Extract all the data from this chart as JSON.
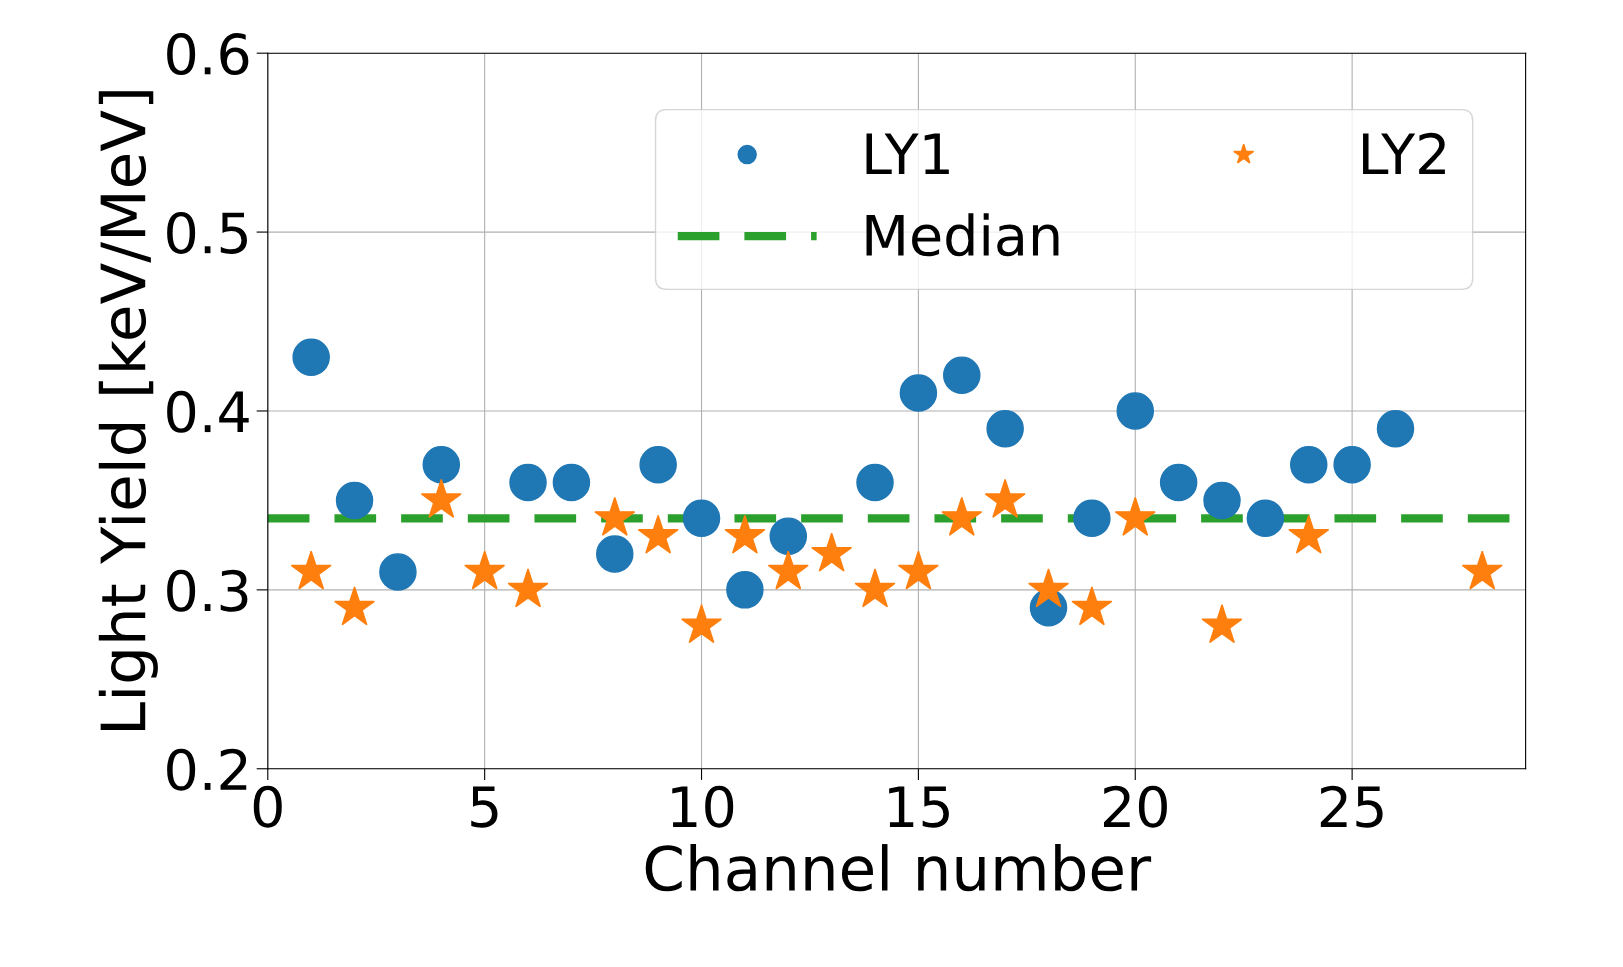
{
  "chart_data": {
    "type": "scatter",
    "xlabel": "Channel number",
    "ylabel": "Light Yield [keV/MeV]",
    "xlim": [
      0,
      29
    ],
    "xticks": [
      0,
      5,
      10,
      15,
      20,
      25
    ],
    "ylim": [
      0.2,
      0.6
    ],
    "yticks": [
      0.2,
      0.3,
      0.4,
      0.5,
      0.6
    ],
    "grid": true,
    "legend": "top right",
    "series": [
      {
        "name": "LY1",
        "color": "#1f77b4",
        "marker": "circle",
        "x": [
          1,
          2,
          3,
          4,
          6,
          7,
          8,
          9,
          10,
          11,
          12,
          14,
          15,
          16,
          17,
          18,
          19,
          20,
          21,
          22,
          23,
          24,
          25,
          26
        ],
        "values": [
          0.43,
          0.35,
          0.31,
          0.37,
          0.36,
          0.36,
          0.32,
          0.37,
          0.34,
          0.3,
          0.33,
          0.36,
          0.41,
          0.42,
          0.39,
          0.29,
          0.34,
          0.4,
          0.36,
          0.35,
          0.34,
          0.37,
          0.37,
          0.39
        ]
      },
      {
        "name": "LY2",
        "color": "#ff7f0e",
        "marker": "star",
        "x": [
          1,
          2,
          4,
          5,
          6,
          8,
          9,
          10,
          11,
          12,
          13,
          14,
          15,
          16,
          17,
          18,
          19,
          20,
          22,
          24,
          28
        ],
        "values": [
          0.31,
          0.29,
          0.35,
          0.31,
          0.3,
          0.34,
          0.33,
          0.28,
          0.33,
          0.31,
          0.32,
          0.3,
          0.31,
          0.34,
          0.35,
          0.3,
          0.29,
          0.34,
          0.28,
          0.33,
          0.31
        ]
      }
    ],
    "ref_lines": [
      {
        "axis": "y",
        "value": 0.34,
        "label": "Median",
        "color": "#2ca02c",
        "line_style": "dashed"
      }
    ]
  }
}
